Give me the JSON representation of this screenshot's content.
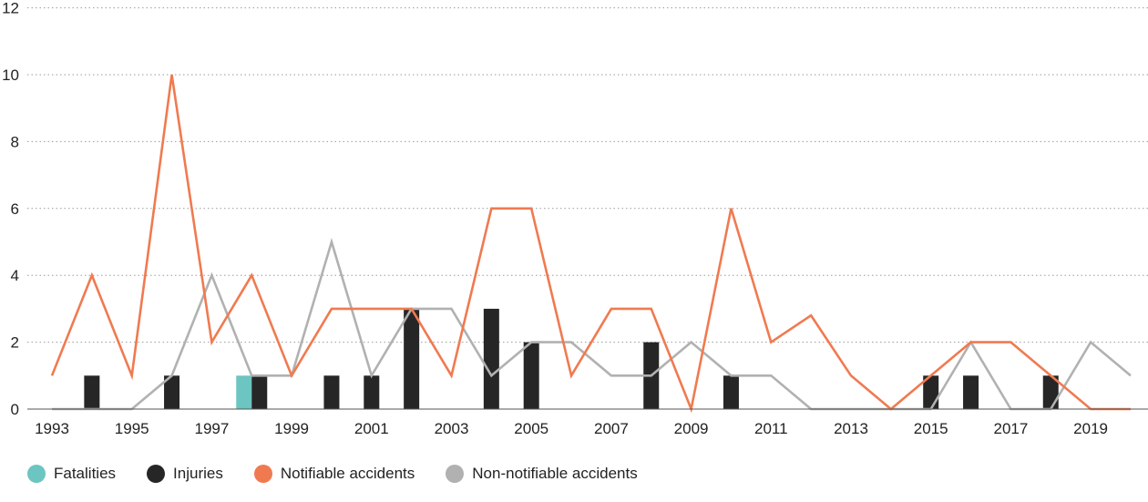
{
  "chart_data": {
    "type": "bar+line",
    "x": [
      1993,
      1994,
      1995,
      1996,
      1997,
      1998,
      1999,
      2000,
      2001,
      2002,
      2003,
      2004,
      2005,
      2006,
      2007,
      2008,
      2009,
      2010,
      2011,
      2012,
      2013,
      2014,
      2015,
      2016,
      2017,
      2018,
      2019,
      2020
    ],
    "x_tick_labels": [
      "1993",
      "1995",
      "1997",
      "1999",
      "2001",
      "2003",
      "2005",
      "2007",
      "2009",
      "2011",
      "2013",
      "2015",
      "2017",
      "2019"
    ],
    "y_ticks": [
      "0",
      "2",
      "4",
      "6",
      "8",
      "10",
      "12"
    ],
    "ylim": [
      0,
      12
    ],
    "grid": "horizontal dotted",
    "legend_position": "bottom",
    "bars": [
      {
        "name": "Fatalities",
        "color": "#6cc5c1",
        "values": [
          0,
          0,
          0,
          0,
          0,
          1,
          0,
          0,
          0,
          0,
          0,
          0,
          0,
          0,
          0,
          0,
          0,
          0,
          0,
          0,
          0,
          0,
          0,
          0,
          0,
          0,
          0,
          0
        ]
      },
      {
        "name": "Injuries",
        "color": "#262626",
        "values": [
          0,
          1,
          0,
          1,
          0,
          1,
          0,
          1,
          1,
          3,
          0,
          3,
          2,
          0,
          0,
          2,
          0,
          1,
          0,
          0,
          0,
          0,
          1,
          1,
          0,
          1,
          0,
          0
        ]
      }
    ],
    "lines": [
      {
        "name": "Notifiable accidents",
        "color": "#f07a50",
        "values": [
          1,
          4,
          1,
          10,
          2,
          4,
          1,
          3,
          3,
          3,
          1,
          6,
          6,
          1,
          3,
          3,
          0,
          6,
          2,
          2.8,
          1,
          0,
          1,
          2,
          2,
          1,
          0,
          0
        ]
      },
      {
        "name": "Non-notifiable accidents",
        "color": "#b1b1b1",
        "values": [
          0,
          0,
          0,
          1,
          4,
          1,
          1,
          5,
          1,
          3,
          3,
          1,
          2,
          2,
          1,
          1,
          2,
          1,
          1,
          0,
          0,
          0,
          0,
          2,
          0,
          0,
          2,
          1
        ]
      }
    ]
  },
  "legend": [
    {
      "label": "Fatalities",
      "color": "#6cc5c1"
    },
    {
      "label": "Injuries",
      "color": "#262626"
    },
    {
      "label": "Notifiable accidents",
      "color": "#f07a50"
    },
    {
      "label": "Non-notifiable accidents",
      "color": "#b1b1b1"
    }
  ]
}
